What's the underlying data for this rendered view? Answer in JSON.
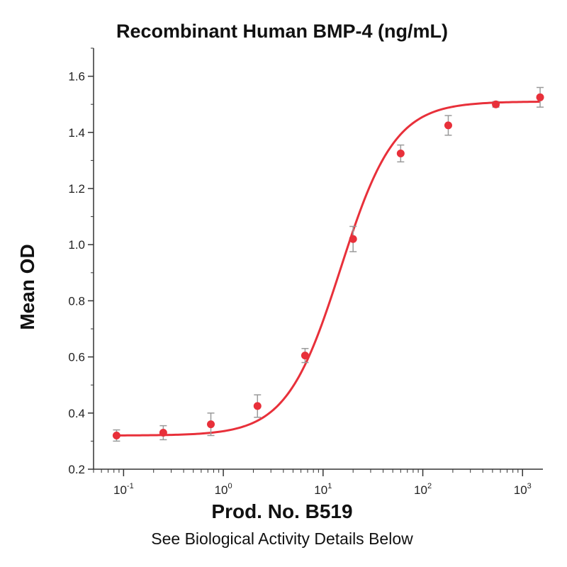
{
  "chart_data": {
    "type": "scatter",
    "title": "Recombinant Human BMP-4 (ng/mL)",
    "xlabel": "Prod. No. B519",
    "ylabel": "Mean OD",
    "subtitle_below": "See Biological Activity Details Below",
    "x_scale": "log",
    "xlim": [
      0.05,
      1600
    ],
    "ylim": [
      0.2,
      1.7
    ],
    "y_ticks": [
      "0.2",
      "0.4",
      "0.6",
      "0.8",
      "1.0",
      "1.2",
      "1.4",
      "1.6"
    ],
    "x_ticks": [
      {
        "base": "10",
        "exp": "-1"
      },
      {
        "base": "10",
        "exp": "0"
      },
      {
        "base": "10",
        "exp": "1"
      },
      {
        "base": "10",
        "exp": "2"
      },
      {
        "base": "10",
        "exp": "3"
      }
    ],
    "grid": false,
    "series": [
      {
        "x": [
          0.085,
          0.25,
          0.75,
          2.2,
          6.6,
          20,
          60,
          180,
          540,
          1500
        ],
        "y": [
          0.32,
          0.33,
          0.36,
          0.425,
          0.605,
          1.02,
          1.325,
          1.425,
          1.5,
          1.525
        ],
        "err": [
          0.02,
          0.025,
          0.04,
          0.04,
          0.025,
          0.045,
          0.03,
          0.035,
          0.01,
          0.035
        ]
      }
    ],
    "fit_curve": {
      "model": "4PL",
      "bottom": 0.32,
      "top": 1.51,
      "ec50": 15,
      "hill": 1.6
    },
    "colors": {
      "points": "#e8303a",
      "curve": "#e8303a",
      "error_bars": "#9a9a9a",
      "axis": "#333333"
    }
  }
}
